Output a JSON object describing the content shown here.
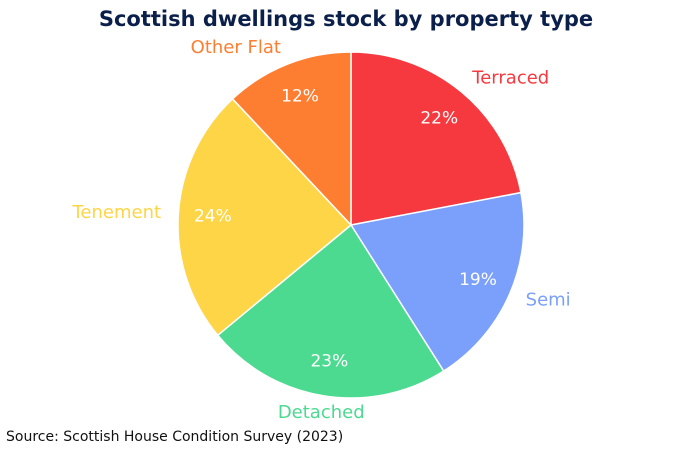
{
  "chart_data": {
    "type": "pie",
    "title": "Scottish dwellings stock by property type",
    "source": "Source: Scottish House Condition Survey (2023)",
    "categories": [
      "Terraced",
      "Semi",
      "Detached",
      "Tenement",
      "Other Flat"
    ],
    "values": [
      22,
      19,
      23,
      24,
      12
    ],
    "value_labels": [
      "22%",
      "19%",
      "23%",
      "24%",
      "12%"
    ],
    "colors": [
      "#f5393f",
      "#7aa0fb",
      "#4cd990",
      "#fed546",
      "#fe7e31"
    ]
  }
}
